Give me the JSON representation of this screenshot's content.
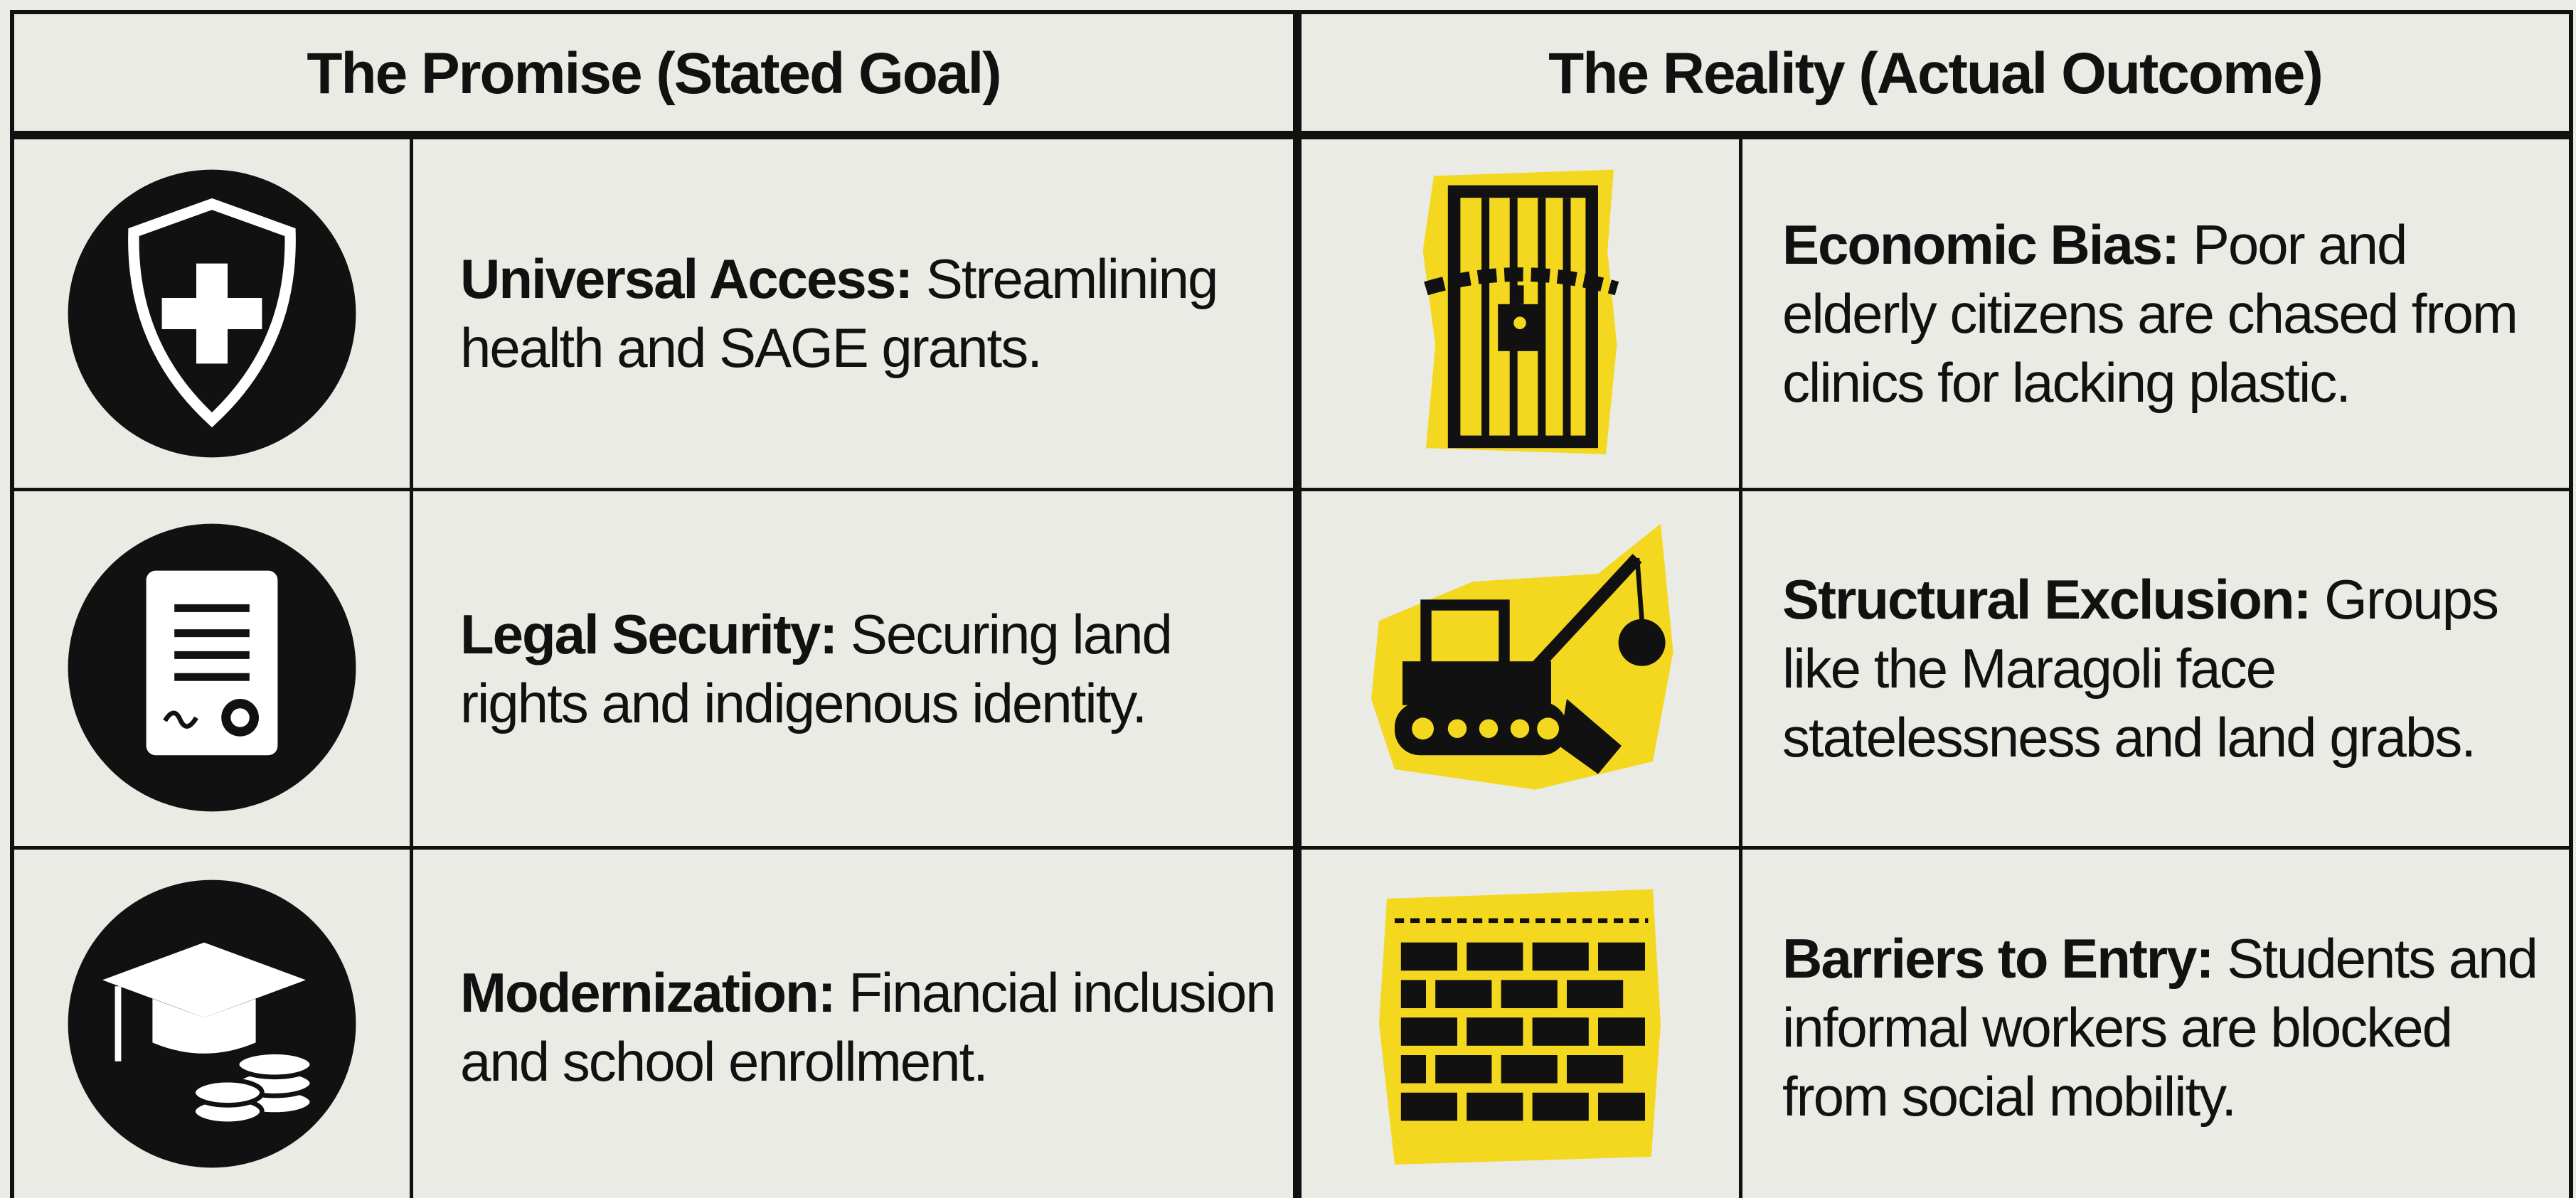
{
  "header": {
    "left": "The Promise (Stated Goal)",
    "right": "The Reality (Actual Outcome)"
  },
  "rows": [
    {
      "promise": {
        "label": "Universal Access:",
        "text": "Streamlining health and SAGE grants."
      },
      "reality": {
        "label": "Economic Bias:",
        "text": "Poor and elderly citizens are chased from clinics for lacking plastic."
      }
    },
    {
      "promise": {
        "label": "Legal Security:",
        "text": "Securing land rights and indigenous identity."
      },
      "reality": {
        "label": "Structural Exclusion:",
        "text": "Groups like the Maragoli face statelessness and land grabs."
      }
    },
    {
      "promise": {
        "label": "Modernization:",
        "text": "Financial inclusion and school enrollment."
      },
      "reality": {
        "label": "Barriers to Entry:",
        "text": "Students and informal workers are blocked from social mobility."
      }
    }
  ]
}
